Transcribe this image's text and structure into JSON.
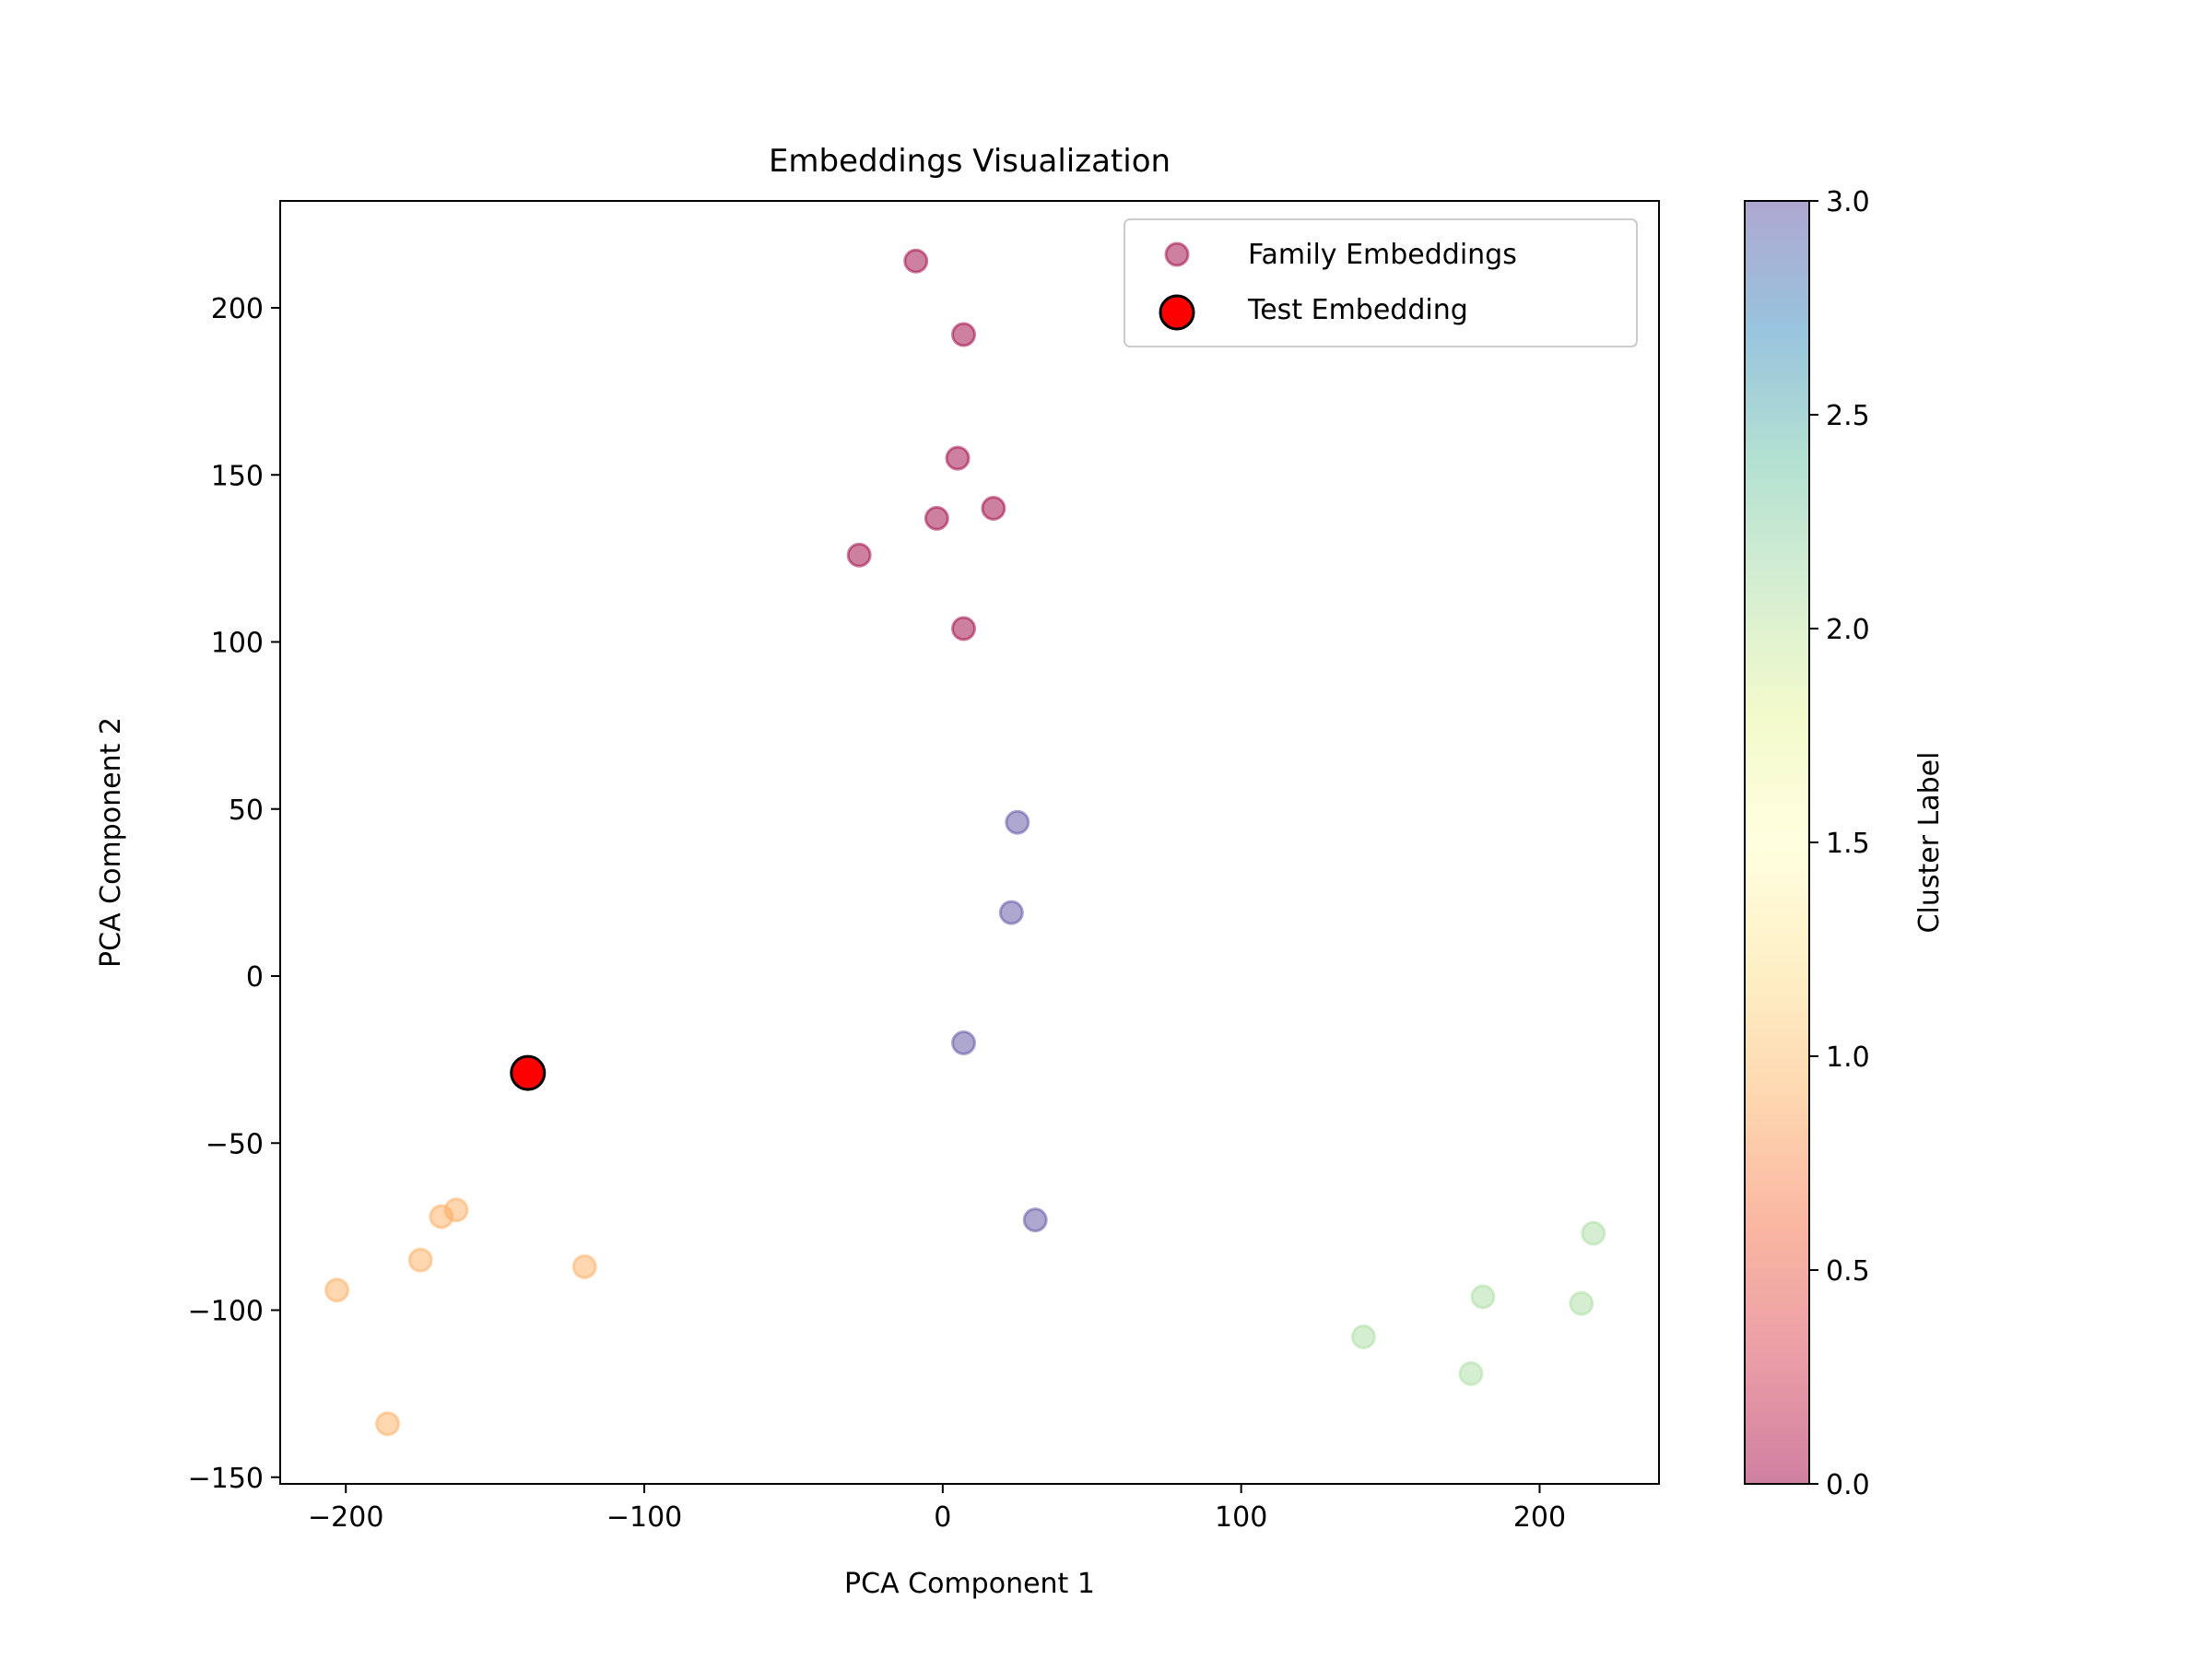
{
  "chart_data": {
    "type": "scatter",
    "title": "Embeddings Visualization",
    "xlabel": "PCA Component 1",
    "ylabel": "PCA Component 2",
    "xlim": [
      -222,
      240
    ],
    "ylim": [
      -152,
      232
    ],
    "xticks": [
      -200,
      -100,
      0,
      100,
      200
    ],
    "xtick_labels": [
      "−200",
      "−100",
      "0",
      "100",
      "200"
    ],
    "yticks": [
      -150,
      -100,
      -50,
      0,
      50,
      100,
      150,
      200
    ],
    "ytick_labels": [
      "−150",
      "−100",
      "−50",
      "0",
      "50",
      "100",
      "150",
      "200"
    ],
    "grid": false,
    "legend_position": "top-right",
    "colorbar": {
      "label": "Cluster Label",
      "range": [
        0.0,
        3.0
      ],
      "ticks": [
        0.0,
        0.5,
        1.0,
        1.5,
        2.0,
        2.5,
        3.0
      ],
      "tick_labels": [
        "0.0",
        "0.5",
        "1.0",
        "1.5",
        "2.0",
        "2.5",
        "3.0"
      ],
      "colormap": "Spectral",
      "alpha": 0.5
    },
    "series": [
      {
        "name": "Family Embeddings",
        "marker": "circle",
        "legend_color": "#9e0142",
        "cluster_colors": {
          "0": "#9e0142",
          "1": "#fdae61",
          "2": "#abdda4",
          "3": "#5e4fa2"
        },
        "points": [
          {
            "x": -9,
            "y": 214,
            "cluster": 0
          },
          {
            "x": 7,
            "y": 192,
            "cluster": 0
          },
          {
            "x": 5,
            "y": 155,
            "cluster": 0
          },
          {
            "x": 17,
            "y": 140,
            "cluster": 0
          },
          {
            "x": -2,
            "y": 137,
            "cluster": 0
          },
          {
            "x": -28,
            "y": 126,
            "cluster": 0
          },
          {
            "x": 7,
            "y": 104,
            "cluster": 0
          },
          {
            "x": 25,
            "y": 46,
            "cluster": 3
          },
          {
            "x": 23,
            "y": 19,
            "cluster": 3
          },
          {
            "x": 7,
            "y": -20,
            "cluster": 3
          },
          {
            "x": 31,
            "y": -73,
            "cluster": 3
          },
          {
            "x": -163,
            "y": -70,
            "cluster": 1
          },
          {
            "x": -168,
            "y": -72,
            "cluster": 1
          },
          {
            "x": -175,
            "y": -85,
            "cluster": 1
          },
          {
            "x": -120,
            "y": -87,
            "cluster": 1
          },
          {
            "x": -203,
            "y": -94,
            "cluster": 1
          },
          {
            "x": -186,
            "y": -134,
            "cluster": 1
          },
          {
            "x": 218,
            "y": -77,
            "cluster": 2
          },
          {
            "x": 181,
            "y": -96,
            "cluster": 2
          },
          {
            "x": 214,
            "y": -98,
            "cluster": 2
          },
          {
            "x": 141,
            "y": -108,
            "cluster": 2
          },
          {
            "x": 177,
            "y": -119,
            "cluster": 2
          }
        ]
      },
      {
        "name": "Test Embedding",
        "marker": "circle",
        "color": "#ff0000",
        "edge_color": "#000000",
        "points": [
          {
            "x": -139,
            "y": -29
          }
        ]
      }
    ]
  }
}
